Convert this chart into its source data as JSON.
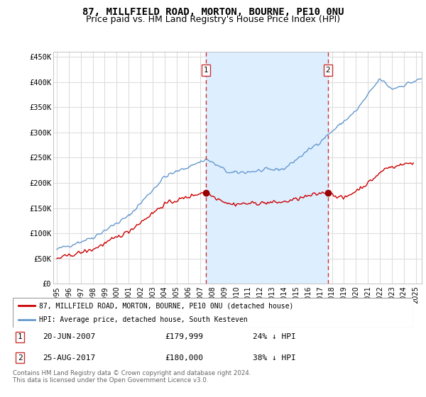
{
  "title": "87, MILLFIELD ROAD, MORTON, BOURNE, PE10 0NU",
  "subtitle": "Price paid vs. HM Land Registry's House Price Index (HPI)",
  "ylabel_ticks": [
    "£0",
    "£50K",
    "£100K",
    "£150K",
    "£200K",
    "£250K",
    "£300K",
    "£350K",
    "£400K",
    "£450K"
  ],
  "ytick_values": [
    0,
    50000,
    100000,
    150000,
    200000,
    250000,
    300000,
    350000,
    400000,
    450000
  ],
  "ylim": [
    0,
    460000
  ],
  "xlim_start": 1994.7,
  "xlim_end": 2025.5,
  "purchase1_x": 2007.47,
  "purchase1_y": 179999,
  "purchase1_label": "1",
  "purchase1_date": "20-JUN-2007",
  "purchase1_price": "£179,999",
  "purchase1_hpi": "24% ↓ HPI",
  "purchase2_x": 2017.65,
  "purchase2_y": 180000,
  "purchase2_label": "2",
  "purchase2_date": "25-AUG-2017",
  "purchase2_price": "£180,000",
  "purchase2_hpi": "38% ↓ HPI",
  "line1_color": "#cc0000",
  "line2_color": "#6699cc",
  "legend1_label": "87, MILLFIELD ROAD, MORTON, BOURNE, PE10 0NU (detached house)",
  "legend2_label": "HPI: Average price, detached house, South Kesteven",
  "footer": "Contains HM Land Registry data © Crown copyright and database right 2024.\nThis data is licensed under the Open Government Licence v3.0.",
  "background_color": "#ffffff",
  "plot_bg_color": "#ffffff",
  "grid_color": "#dddddd",
  "span_color": "#ddeeff",
  "title_fontsize": 10,
  "subtitle_fontsize": 9
}
